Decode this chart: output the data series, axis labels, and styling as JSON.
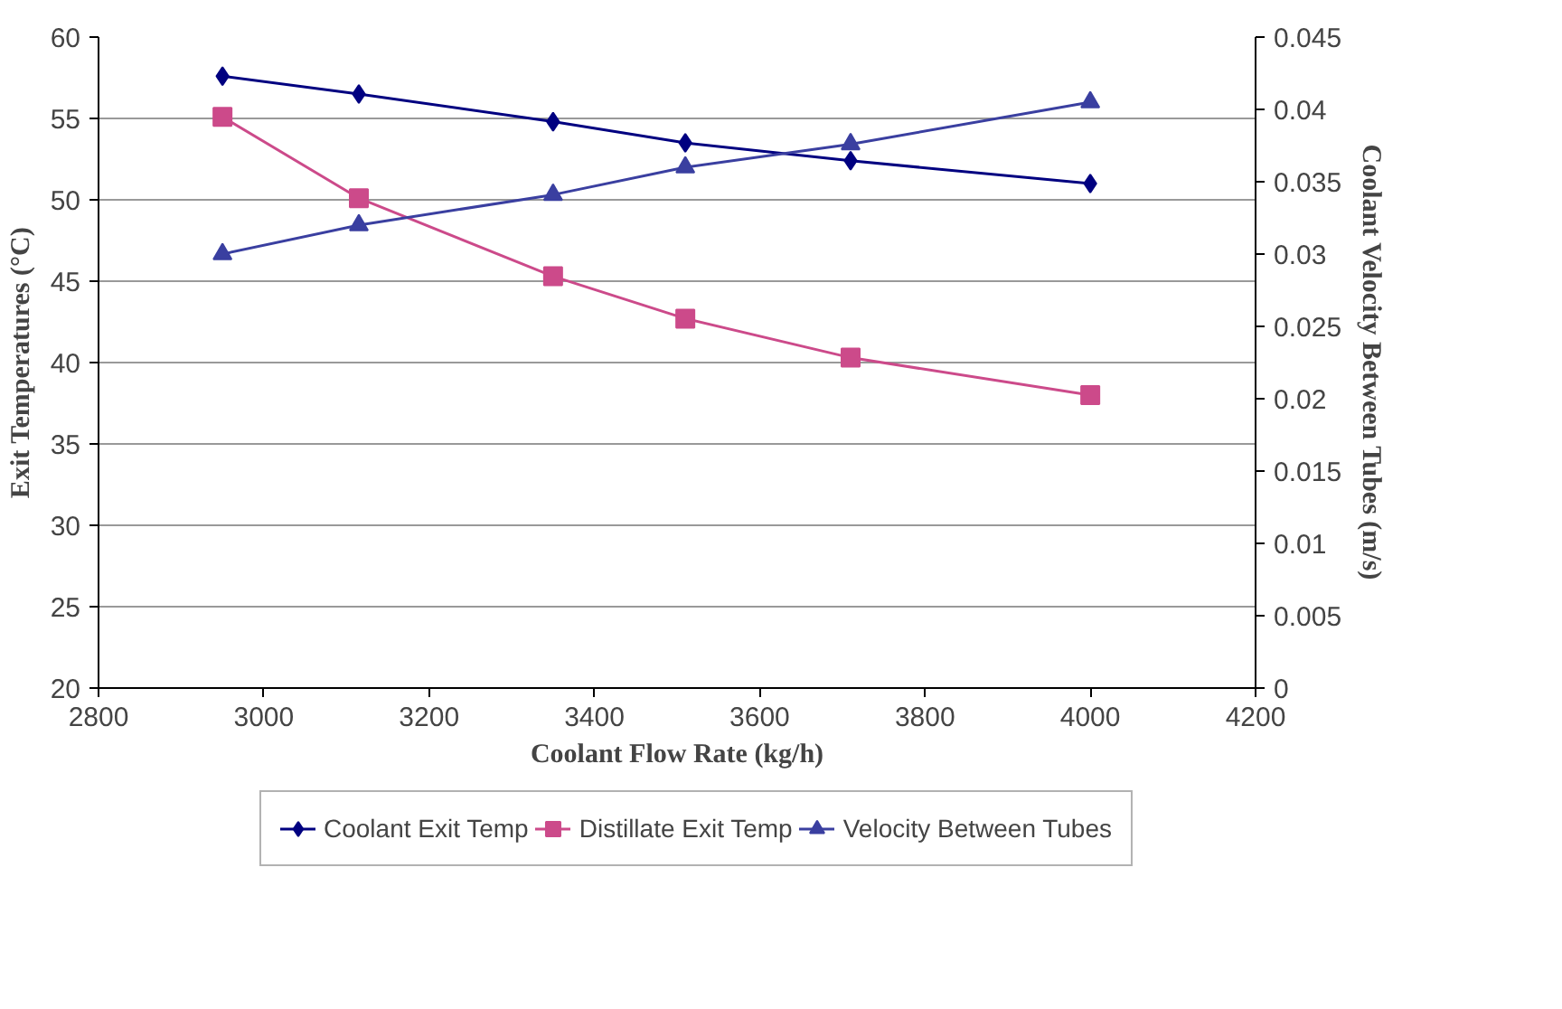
{
  "chart_data": {
    "type": "line",
    "xlabel": "Coolant Flow Rate (kg/h)",
    "ylabel": "Exit Temperatures (°C)",
    "y2label": "Coolant Velocity Between Tubes (m/s)",
    "x": [
      2950,
      3115,
      3350,
      3510,
      3710,
      4000
    ],
    "series": [
      {
        "name": "Coolant Exit Temp",
        "color": "#000080",
        "marker": "diamond",
        "values": [
          57.6,
          56.5,
          54.8,
          53.5,
          52.4,
          51.0
        ]
      },
      {
        "name": "Distillate Exit Temp",
        "color": "#cc4a8a",
        "marker": "square",
        "values": [
          55.1,
          50.1,
          45.3,
          42.7,
          40.3,
          38.0
        ]
      },
      {
        "name": "Velocity Between Tubes",
        "color": "#3a3fa0",
        "marker": "triangle",
        "axis": "y2",
        "values": [
          0.03,
          0.032,
          0.0341,
          0.036,
          0.0376,
          0.0405
        ]
      }
    ],
    "xlim": [
      2800,
      4200
    ],
    "xticks": [
      2800,
      3000,
      3200,
      3400,
      3600,
      3800,
      4000,
      4200
    ],
    "ylim": [
      20,
      60
    ],
    "yticks": [
      20,
      25,
      30,
      35,
      40,
      45,
      50,
      55,
      60
    ],
    "y2lim": [
      0,
      0.045
    ],
    "y2ticks": [
      0,
      0.005,
      0.01,
      0.015,
      0.02,
      0.025,
      0.03,
      0.035,
      0.04,
      0.045
    ],
    "grid": "y",
    "legend": "bottom"
  }
}
